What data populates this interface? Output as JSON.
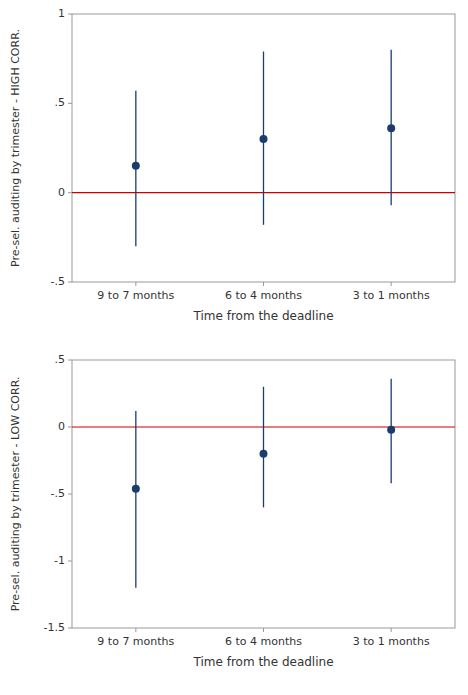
{
  "chart_data": [
    {
      "type": "errorbar",
      "ylabel": "Pre-sel. auditing by trimester - HIGH CORR.",
      "xlabel": "Time from the deadline",
      "categories": [
        "9 to 7 months",
        "6 to 4 months",
        "3 to 1 months"
      ],
      "values": [
        0.15,
        0.3,
        0.36
      ],
      "ci_low": [
        -0.3,
        -0.18,
        -0.07
      ],
      "ci_high": [
        0.57,
        0.79,
        0.8
      ],
      "color": "#1b3d6e",
      "reference_line": {
        "value": 0,
        "color": "#cc0000"
      },
      "ylim": [
        -0.5,
        1.0
      ],
      "yticks": [
        {
          "value": -0.5,
          "label": "-.5"
        },
        0,
        {
          "value": 0.5,
          "label": ".5"
        },
        1
      ],
      "grid": false
    },
    {
      "type": "errorbar",
      "ylabel": "Pre-sel. auditing by trimester - LOW CORR.",
      "xlabel": "Time from the deadline",
      "categories": [
        "9 to 7 months",
        "6 to 4 months",
        "3 to 1 months"
      ],
      "values": [
        -0.46,
        -0.2,
        -0.02
      ],
      "ci_low": [
        -1.2,
        -0.6,
        -0.42
      ],
      "ci_high": [
        0.12,
        0.3,
        0.36
      ],
      "color": "#1b3d6e",
      "reference_line": {
        "value": 0,
        "color": "#cc0000"
      },
      "ylim": [
        -1.5,
        0.5
      ],
      "yticks": [
        -1.5,
        -1,
        {
          "value": -0.5,
          "label": "-.5"
        },
        0,
        {
          "value": 0.5,
          "label": ".5"
        }
      ],
      "grid": false
    }
  ]
}
